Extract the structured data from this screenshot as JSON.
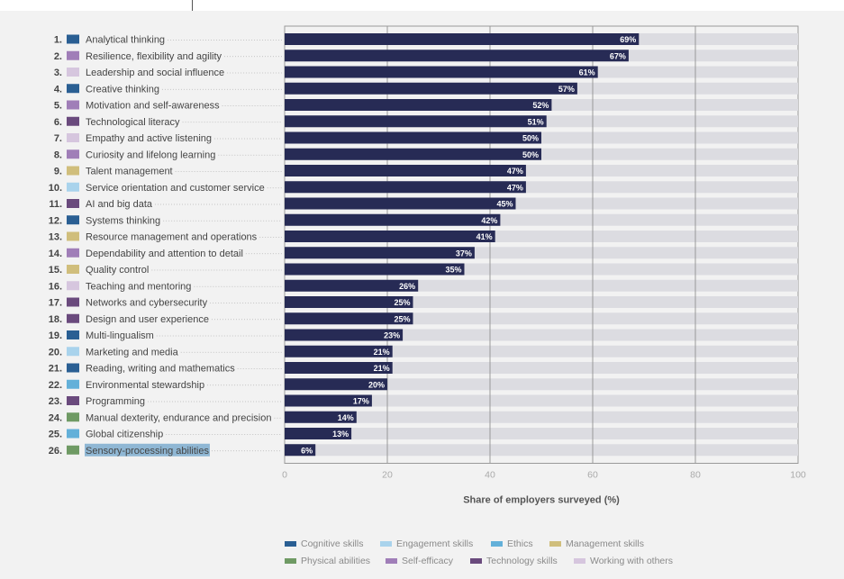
{
  "chart_data": {
    "type": "bar",
    "orientation": "horizontal",
    "xlabel": "Share of employers surveyed (%)",
    "xlim": [
      0,
      100
    ],
    "xticks": [
      "0",
      "20",
      "40",
      "60",
      "80",
      "100"
    ],
    "grid": true,
    "legend_position": "bottom",
    "categories": [
      {
        "rank": "1.",
        "label": "Analytical thinking",
        "value": 69,
        "value_label": "69%",
        "group": "Cognitive skills"
      },
      {
        "rank": "2.",
        "label": "Resilience, flexibility and agility",
        "value": 67,
        "value_label": "67%",
        "group": "Self-efficacy"
      },
      {
        "rank": "3.",
        "label": "Leadership and social influence",
        "value": 61,
        "value_label": "61%",
        "group": "Working with others"
      },
      {
        "rank": "4.",
        "label": "Creative thinking",
        "value": 57,
        "value_label": "57%",
        "group": "Cognitive skills"
      },
      {
        "rank": "5.",
        "label": "Motivation and self-awareness",
        "value": 52,
        "value_label": "52%",
        "group": "Self-efficacy"
      },
      {
        "rank": "6.",
        "label": "Technological literacy",
        "value": 51,
        "value_label": "51%",
        "group": "Technology skills"
      },
      {
        "rank": "7.",
        "label": "Empathy and active listening",
        "value": 50,
        "value_label": "50%",
        "group": "Working with others"
      },
      {
        "rank": "8.",
        "label": "Curiosity and lifelong learning",
        "value": 50,
        "value_label": "50%",
        "group": "Self-efficacy"
      },
      {
        "rank": "9.",
        "label": "Talent management",
        "value": 47,
        "value_label": "47%",
        "group": "Management skills"
      },
      {
        "rank": "10.",
        "label": "Service orientation and customer service",
        "value": 47,
        "value_label": "47%",
        "group": "Engagement skills"
      },
      {
        "rank": "11.",
        "label": "AI and big data",
        "value": 45,
        "value_label": "45%",
        "group": "Technology skills"
      },
      {
        "rank": "12.",
        "label": "Systems thinking",
        "value": 42,
        "value_label": "42%",
        "group": "Cognitive skills"
      },
      {
        "rank": "13.",
        "label": "Resource management and operations",
        "value": 41,
        "value_label": "41%",
        "group": "Management skills"
      },
      {
        "rank": "14.",
        "label": "Dependability and attention to detail",
        "value": 37,
        "value_label": "37%",
        "group": "Self-efficacy"
      },
      {
        "rank": "15.",
        "label": "Quality control",
        "value": 35,
        "value_label": "35%",
        "group": "Management skills"
      },
      {
        "rank": "16.",
        "label": "Teaching and mentoring",
        "value": 26,
        "value_label": "26%",
        "group": "Working with others"
      },
      {
        "rank": "17.",
        "label": "Networks and cybersecurity",
        "value": 25,
        "value_label": "25%",
        "group": "Technology skills"
      },
      {
        "rank": "18.",
        "label": "Design and user experience",
        "value": 25,
        "value_label": "25%",
        "group": "Technology skills"
      },
      {
        "rank": "19.",
        "label": "Multi-lingualism",
        "value": 23,
        "value_label": "23%",
        "group": "Cognitive skills"
      },
      {
        "rank": "20.",
        "label": "Marketing and media",
        "value": 21,
        "value_label": "21%",
        "group": "Engagement skills"
      },
      {
        "rank": "21.",
        "label": "Reading, writing and mathematics",
        "value": 21,
        "value_label": "21%",
        "group": "Cognitive skills"
      },
      {
        "rank": "22.",
        "label": "Environmental stewardship",
        "value": 20,
        "value_label": "20%",
        "group": "Ethics"
      },
      {
        "rank": "23.",
        "label": "Programming",
        "value": 17,
        "value_label": "17%",
        "group": "Technology skills"
      },
      {
        "rank": "24.",
        "label": "Manual dexterity, endurance and precision",
        "value": 14,
        "value_label": "14%",
        "group": "Physical abilities"
      },
      {
        "rank": "25.",
        "label": "Global citizenship",
        "value": 13,
        "value_label": "13%",
        "group": "Ethics"
      },
      {
        "rank": "26.",
        "label": "Sensory-processing abilities",
        "value": 6,
        "value_label": "6%",
        "group": "Physical abilities"
      }
    ],
    "legend": [
      {
        "name": "Cognitive skills",
        "color": "#2a5f93"
      },
      {
        "name": "Engagement skills",
        "color": "#a9d3ec"
      },
      {
        "name": "Ethics",
        "color": "#63b0d9"
      },
      {
        "name": "Management skills",
        "color": "#d0be7c"
      },
      {
        "name": "Physical abilities",
        "color": "#6f9a64"
      },
      {
        "name": "Self-efficacy",
        "color": "#a07eb8"
      },
      {
        "name": "Technology skills",
        "color": "#6a4a7d"
      },
      {
        "name": "Working with others",
        "color": "#d6c6de"
      }
    ],
    "colors": {
      "bar": "#272b55",
      "track": "#dcdce1",
      "grid": "#999999",
      "highlight": "#8fb7d4"
    },
    "highlighted_label": "Sensory-processing abilities"
  }
}
